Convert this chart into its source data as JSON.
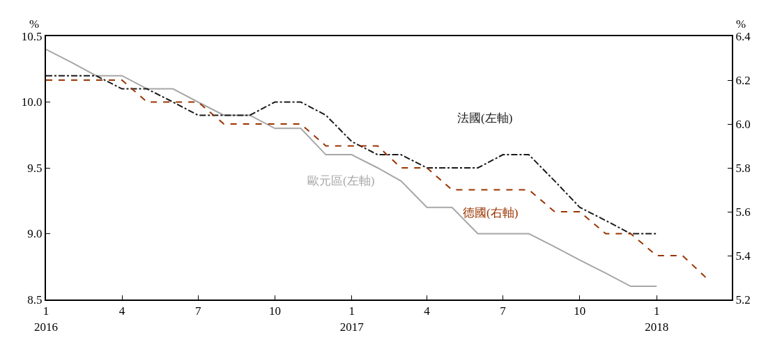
{
  "chart_data": {
    "type": "line",
    "ylabel": "%",
    "y2label": "%",
    "x": [
      "2016-01",
      "2016-02",
      "2016-03",
      "2016-04",
      "2016-05",
      "2016-06",
      "2016-07",
      "2016-08",
      "2016-09",
      "2016-10",
      "2016-11",
      "2016-12",
      "2017-01",
      "2017-02",
      "2017-03",
      "2017-04",
      "2017-05",
      "2017-06",
      "2017-07",
      "2017-08",
      "2017-09",
      "2017-10",
      "2017-11",
      "2017-12",
      "2018-01",
      "2018-02",
      "2018-03"
    ],
    "series": [
      {
        "name": "歐元區(左軸)",
        "color": "#a6a6a6",
        "line_style": "solid",
        "values": [
          10.4,
          10.3,
          10.2,
          10.2,
          10.1,
          10.1,
          10.0,
          9.9,
          9.9,
          9.8,
          9.8,
          9.6,
          9.6,
          9.5,
          9.4,
          9.2,
          9.2,
          9.0,
          9.0,
          9.0,
          8.9,
          8.8,
          8.7,
          8.6,
          8.6,
          null,
          null
        ]
      },
      {
        "name": "法國(左軸)",
        "color": "#1a1a1a",
        "line_style": "dashdot",
        "values": [
          10.2,
          10.2,
          10.2,
          10.1,
          10.1,
          10.0,
          9.9,
          9.9,
          9.9,
          10.0,
          10.0,
          9.9,
          9.7,
          9.6,
          9.6,
          9.5,
          9.5,
          9.5,
          9.6,
          9.6,
          9.4,
          9.2,
          9.1,
          9.0,
          9.0,
          null,
          null
        ]
      },
      {
        "name": "德國(右軸)",
        "color": "#993300",
        "line_style": "dashed",
        "axis": "y2",
        "values": [
          6.2,
          6.2,
          6.2,
          6.2,
          6.1,
          6.1,
          6.1,
          6.0,
          6.0,
          6.0,
          6.0,
          5.9,
          5.9,
          5.9,
          5.8,
          5.8,
          5.7,
          5.7,
          5.7,
          5.7,
          5.6,
          5.6,
          5.5,
          5.5,
          5.4,
          5.4,
          5.3
        ]
      }
    ],
    "xlim": [
      "2016-01",
      "2018-04"
    ],
    "xticks": [
      {
        "value": "2016-01",
        "label": "1\n2016"
      },
      {
        "value": "2016-04",
        "label": "4"
      },
      {
        "value": "2016-07",
        "label": "7"
      },
      {
        "value": "2016-10",
        "label": "10"
      },
      {
        "value": "2017-01",
        "label": "1\n2017"
      },
      {
        "value": "2017-04",
        "label": "4"
      },
      {
        "value": "2017-07",
        "label": "7"
      },
      {
        "value": "2017-10",
        "label": "10"
      },
      {
        "value": "2018-01",
        "label": "1\n2018"
      }
    ],
    "ylim": [
      8.5,
      10.5
    ],
    "yticks": [
      8.5,
      {
        "value": 9,
        "label": "9.0"
      },
      9.5,
      {
        "value": 10,
        "label": "10.0"
      },
      10.5
    ],
    "y2lim": [
      5.2,
      6.4
    ],
    "y2ticks": [
      5.2,
      5.4,
      5.6,
      5.8,
      {
        "value": 6,
        "label": "6.0"
      },
      6.2,
      6.4
    ],
    "grid": false,
    "legend": false,
    "marker": "none"
  }
}
